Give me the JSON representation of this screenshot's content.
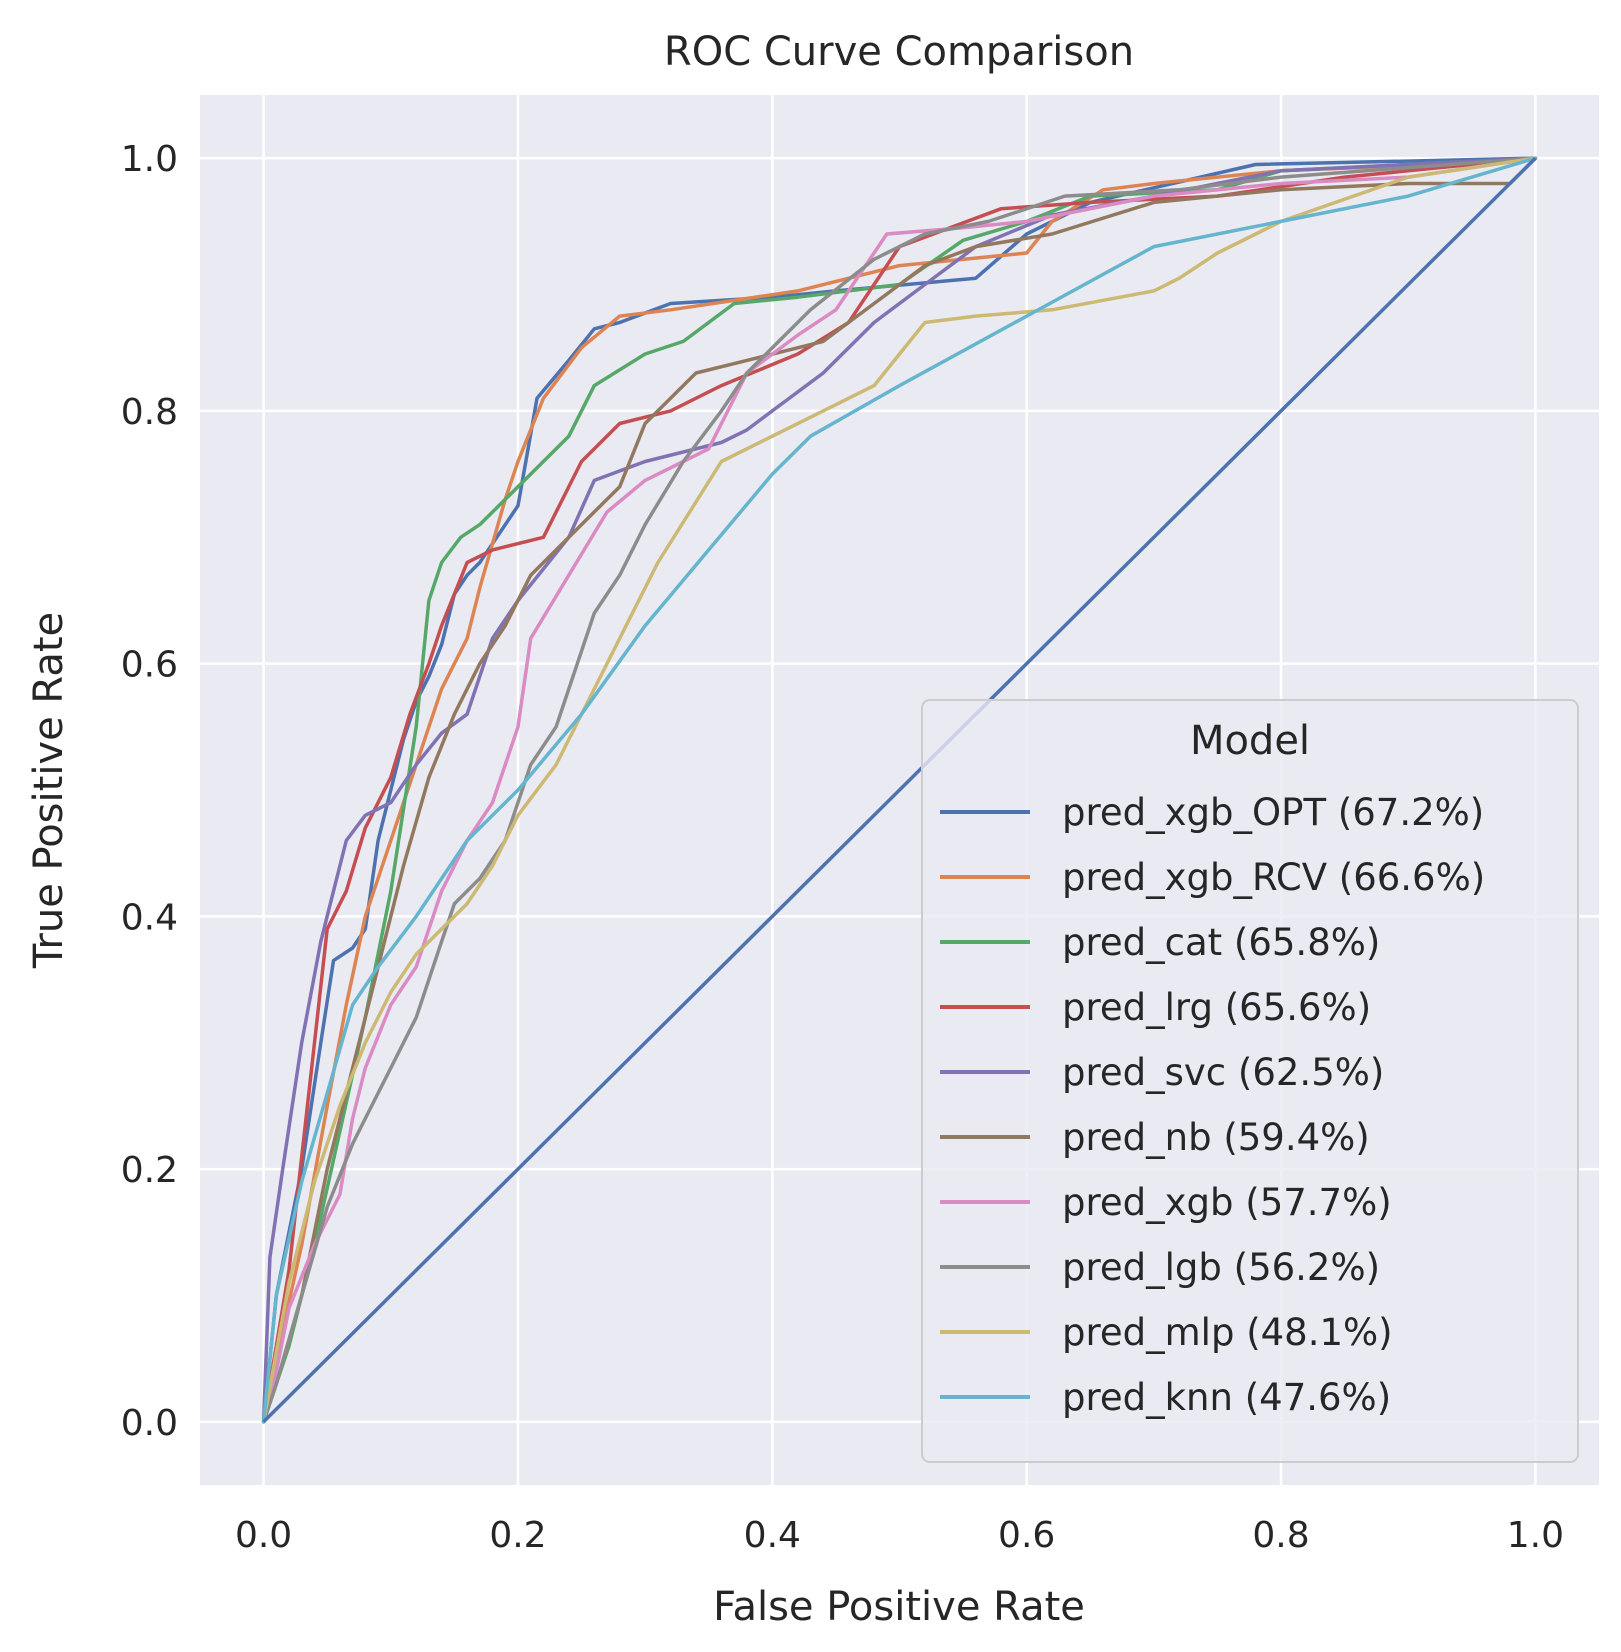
{
  "chart_data": {
    "type": "line",
    "title": "ROC Curve Comparison",
    "xlabel": "False Positive Rate",
    "ylabel": "True Positive Rate",
    "xlim": [
      -0.05,
      1.05
    ],
    "ylim": [
      -0.05,
      1.05
    ],
    "xticks": [
      0.0,
      0.2,
      0.4,
      0.6,
      0.8,
      1.0
    ],
    "yticks": [
      0.0,
      0.2,
      0.4,
      0.6,
      0.8,
      1.0
    ],
    "xtick_labels": [
      "0.0",
      "0.2",
      "0.4",
      "0.6",
      "0.8",
      "1.0"
    ],
    "ytick_labels": [
      "0.0",
      "0.2",
      "0.4",
      "0.6",
      "0.8",
      "1.0"
    ],
    "grid": true,
    "background": "#EAEAF2",
    "legend": {
      "title": "Model",
      "placement": "lower-right"
    },
    "diagonal": {
      "color": "#4C72B0",
      "x": [
        0,
        1
      ],
      "y": [
        0,
        1
      ]
    },
    "series": [
      {
        "name": "pred_xgb_OPT (67.2%)",
        "color": "#4C72B0",
        "x": [
          0,
          0.01,
          0.03,
          0.045,
          0.055,
          0.07,
          0.08,
          0.09,
          0.1,
          0.11,
          0.12,
          0.13,
          0.14,
          0.15,
          0.16,
          0.17,
          0.18,
          0.2,
          0.215,
          0.24,
          0.26,
          0.28,
          0.32,
          0.4,
          0.45,
          0.56,
          0.6,
          0.65,
          0.78,
          1.0
        ],
        "y": [
          0,
          0.1,
          0.2,
          0.3,
          0.365,
          0.375,
          0.39,
          0.46,
          0.5,
          0.54,
          0.57,
          0.59,
          0.615,
          0.655,
          0.67,
          0.68,
          0.695,
          0.725,
          0.81,
          0.84,
          0.865,
          0.87,
          0.885,
          0.89,
          0.895,
          0.905,
          0.94,
          0.965,
          0.995,
          1.0
        ]
      },
      {
        "name": "pred_xgb_RCV (66.6%)",
        "color": "#DD8452",
        "x": [
          0,
          0.01,
          0.03,
          0.05,
          0.065,
          0.08,
          0.1,
          0.12,
          0.14,
          0.16,
          0.17,
          0.19,
          0.2,
          0.22,
          0.25,
          0.28,
          0.32,
          0.42,
          0.5,
          0.6,
          0.62,
          0.66,
          0.7,
          0.8,
          0.92,
          1.0
        ],
        "y": [
          0,
          0.05,
          0.14,
          0.25,
          0.33,
          0.4,
          0.46,
          0.52,
          0.58,
          0.62,
          0.66,
          0.73,
          0.76,
          0.81,
          0.85,
          0.875,
          0.88,
          0.895,
          0.915,
          0.925,
          0.95,
          0.975,
          0.98,
          0.99,
          0.995,
          1.0
        ]
      },
      {
        "name": "pred_cat (65.8%)",
        "color": "#55A868",
        "x": [
          0,
          0.02,
          0.04,
          0.06,
          0.08,
          0.1,
          0.12,
          0.13,
          0.14,
          0.155,
          0.17,
          0.19,
          0.21,
          0.24,
          0.26,
          0.3,
          0.33,
          0.37,
          0.42,
          0.5,
          0.55,
          0.6,
          0.65,
          0.75,
          0.8,
          1.0
        ],
        "y": [
          0,
          0.06,
          0.14,
          0.23,
          0.32,
          0.42,
          0.55,
          0.65,
          0.68,
          0.7,
          0.71,
          0.73,
          0.75,
          0.78,
          0.82,
          0.845,
          0.855,
          0.885,
          0.89,
          0.9,
          0.935,
          0.95,
          0.97,
          0.975,
          0.99,
          1.0
        ]
      },
      {
        "name": "pred_lrg (65.6%)",
        "color": "#C44E52",
        "x": [
          0,
          0.02,
          0.04,
          0.05,
          0.065,
          0.08,
          0.1,
          0.115,
          0.13,
          0.14,
          0.16,
          0.18,
          0.22,
          0.25,
          0.28,
          0.32,
          0.36,
          0.42,
          0.46,
          0.5,
          0.58,
          0.65,
          0.75,
          0.85,
          1.0
        ],
        "y": [
          0,
          0.12,
          0.3,
          0.39,
          0.42,
          0.47,
          0.51,
          0.56,
          0.6,
          0.63,
          0.68,
          0.69,
          0.7,
          0.76,
          0.79,
          0.8,
          0.82,
          0.845,
          0.87,
          0.93,
          0.96,
          0.965,
          0.97,
          0.985,
          1.0
        ]
      },
      {
        "name": "pred_svc (62.5%)",
        "color": "#8172B3",
        "x": [
          0,
          0.005,
          0.015,
          0.03,
          0.045,
          0.055,
          0.065,
          0.08,
          0.1,
          0.12,
          0.14,
          0.16,
          0.18,
          0.2,
          0.24,
          0.26,
          0.3,
          0.36,
          0.38,
          0.4,
          0.44,
          0.48,
          0.52,
          0.56,
          0.62,
          0.7,
          0.8,
          0.9,
          1.0
        ],
        "y": [
          0,
          0.13,
          0.2,
          0.3,
          0.38,
          0.42,
          0.46,
          0.48,
          0.49,
          0.52,
          0.545,
          0.56,
          0.62,
          0.65,
          0.7,
          0.745,
          0.76,
          0.775,
          0.785,
          0.8,
          0.83,
          0.87,
          0.9,
          0.93,
          0.955,
          0.97,
          0.99,
          0.995,
          1.0
        ]
      },
      {
        "name": "pred_nb (59.4%)",
        "color": "#937860",
        "x": [
          0,
          0.01,
          0.03,
          0.05,
          0.07,
          0.09,
          0.11,
          0.13,
          0.15,
          0.17,
          0.19,
          0.21,
          0.25,
          0.28,
          0.3,
          0.34,
          0.38,
          0.44,
          0.48,
          0.52,
          0.56,
          0.62,
          0.7,
          0.8,
          0.9,
          0.98,
          1.0
        ],
        "y": [
          0,
          0.03,
          0.1,
          0.2,
          0.28,
          0.36,
          0.44,
          0.51,
          0.56,
          0.6,
          0.63,
          0.67,
          0.71,
          0.74,
          0.79,
          0.83,
          0.84,
          0.855,
          0.885,
          0.915,
          0.93,
          0.94,
          0.965,
          0.975,
          0.98,
          0.98,
          1.0
        ]
      },
      {
        "name": "pred_xgb (57.7%)",
        "color": "#DA8BC3",
        "x": [
          0,
          0.01,
          0.02,
          0.04,
          0.06,
          0.07,
          0.08,
          0.1,
          0.12,
          0.14,
          0.16,
          0.18,
          0.2,
          0.21,
          0.24,
          0.27,
          0.3,
          0.33,
          0.35,
          0.38,
          0.42,
          0.45,
          0.49,
          0.55,
          0.6,
          0.7,
          0.8,
          0.9,
          1.0
        ],
        "y": [
          0,
          0.04,
          0.09,
          0.14,
          0.18,
          0.24,
          0.28,
          0.33,
          0.36,
          0.42,
          0.46,
          0.49,
          0.55,
          0.62,
          0.67,
          0.72,
          0.745,
          0.76,
          0.77,
          0.83,
          0.86,
          0.88,
          0.94,
          0.945,
          0.95,
          0.97,
          0.98,
          0.985,
          1.0
        ]
      },
      {
        "name": "pred_lgb (56.2%)",
        "color": "#8C8C8C",
        "x": [
          0,
          0.01,
          0.03,
          0.05,
          0.07,
          0.08,
          0.1,
          0.12,
          0.14,
          0.15,
          0.17,
          0.19,
          0.21,
          0.23,
          0.24,
          0.26,
          0.28,
          0.3,
          0.33,
          0.36,
          0.38,
          0.43,
          0.48,
          0.52,
          0.57,
          0.63,
          0.72,
          0.8,
          1.0
        ],
        "y": [
          0,
          0.03,
          0.1,
          0.17,
          0.22,
          0.24,
          0.28,
          0.32,
          0.38,
          0.41,
          0.43,
          0.46,
          0.52,
          0.55,
          0.58,
          0.64,
          0.67,
          0.71,
          0.76,
          0.8,
          0.83,
          0.88,
          0.92,
          0.94,
          0.95,
          0.97,
          0.975,
          0.985,
          1.0
        ]
      },
      {
        "name": "pred_mlp (48.1%)",
        "color": "#CCB974",
        "x": [
          0,
          0.02,
          0.04,
          0.06,
          0.08,
          0.1,
          0.12,
          0.14,
          0.16,
          0.18,
          0.2,
          0.23,
          0.27,
          0.31,
          0.36,
          0.4,
          0.44,
          0.48,
          0.52,
          0.56,
          0.62,
          0.7,
          0.72,
          0.75,
          0.8,
          0.9,
          1.0
        ],
        "y": [
          0,
          0.11,
          0.19,
          0.25,
          0.3,
          0.34,
          0.37,
          0.39,
          0.41,
          0.44,
          0.48,
          0.52,
          0.6,
          0.68,
          0.76,
          0.78,
          0.8,
          0.82,
          0.87,
          0.875,
          0.88,
          0.895,
          0.905,
          0.925,
          0.95,
          0.985,
          1.0
        ]
      },
      {
        "name": "pred_knn (47.6%)",
        "color": "#64B5CD",
        "x": [
          0,
          0.01,
          0.03,
          0.05,
          0.07,
          0.09,
          0.12,
          0.16,
          0.2,
          0.25,
          0.3,
          0.35,
          0.4,
          0.43,
          0.5,
          0.6,
          0.7,
          0.8,
          0.9,
          1.0
        ],
        "y": [
          0,
          0.1,
          0.19,
          0.26,
          0.33,
          0.36,
          0.4,
          0.46,
          0.5,
          0.56,
          0.63,
          0.69,
          0.75,
          0.78,
          0.82,
          0.875,
          0.93,
          0.95,
          0.97,
          1.0
        ]
      }
    ]
  }
}
